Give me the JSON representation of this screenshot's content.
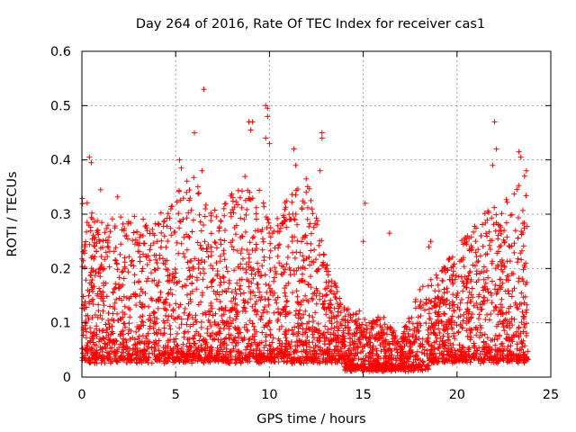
{
  "chart_data": {
    "type": "scatter",
    "title": "Day 264 of 2016, Rate Of TEC Index for receiver cas1",
    "xlabel": "GPS time / hours",
    "ylabel": "ROTI / TECUs",
    "xlim": [
      0,
      25
    ],
    "ylim": [
      0,
      0.6
    ],
    "xticks": [
      0,
      5,
      10,
      15,
      20,
      25
    ],
    "yticks": [
      0,
      0.1,
      0.2,
      0.3,
      0.4,
      0.5,
      0.6
    ],
    "xtick_labels": [
      "0",
      "5",
      "10",
      "15",
      "20",
      "25"
    ],
    "ytick_labels": [
      "0",
      "0.1",
      "0.2",
      "0.3",
      "0.4",
      "0.5",
      "0.6"
    ],
    "grid": true,
    "marker": "+",
    "series": [
      {
        "name": "ROTI",
        "color": "#ff0000",
        "outliers": [
          {
            "x": 0.4,
            "y": 0.405
          },
          {
            "x": 0.5,
            "y": 0.395
          },
          {
            "x": 1.0,
            "y": 0.345
          },
          {
            "x": 1.9,
            "y": 0.332
          },
          {
            "x": 5.2,
            "y": 0.4
          },
          {
            "x": 5.3,
            "y": 0.385
          },
          {
            "x": 6.0,
            "y": 0.45
          },
          {
            "x": 6.5,
            "y": 0.53
          },
          {
            "x": 6.4,
            "y": 0.38
          },
          {
            "x": 8.9,
            "y": 0.47
          },
          {
            "x": 9.1,
            "y": 0.47
          },
          {
            "x": 9.0,
            "y": 0.455
          },
          {
            "x": 9.8,
            "y": 0.5
          },
          {
            "x": 9.9,
            "y": 0.495
          },
          {
            "x": 9.9,
            "y": 0.48
          },
          {
            "x": 9.8,
            "y": 0.44
          },
          {
            "x": 10.0,
            "y": 0.43
          },
          {
            "x": 11.3,
            "y": 0.42
          },
          {
            "x": 11.4,
            "y": 0.39
          },
          {
            "x": 12.8,
            "y": 0.45
          },
          {
            "x": 12.8,
            "y": 0.44
          },
          {
            "x": 12.7,
            "y": 0.38
          },
          {
            "x": 15.1,
            "y": 0.32
          },
          {
            "x": 15.0,
            "y": 0.25
          },
          {
            "x": 16.4,
            "y": 0.265
          },
          {
            "x": 18.6,
            "y": 0.25
          },
          {
            "x": 18.5,
            "y": 0.24
          },
          {
            "x": 22.0,
            "y": 0.47
          },
          {
            "x": 22.1,
            "y": 0.42
          },
          {
            "x": 21.9,
            "y": 0.39
          },
          {
            "x": 23.3,
            "y": 0.415
          },
          {
            "x": 23.4,
            "y": 0.405
          },
          {
            "x": 23.7,
            "y": 0.38
          },
          {
            "x": 23.6,
            "y": 0.37
          }
        ],
        "envelope_hours": [
          0,
          1,
          2,
          3,
          4,
          5,
          6,
          7,
          8,
          9,
          10,
          11,
          12,
          13,
          14,
          15,
          16,
          17,
          18,
          19,
          20,
          21,
          22,
          23,
          23.8
        ],
        "envelope_max_roti": [
          0.34,
          0.28,
          0.3,
          0.3,
          0.29,
          0.35,
          0.37,
          0.3,
          0.34,
          0.38,
          0.3,
          0.34,
          0.37,
          0.22,
          0.13,
          0.12,
          0.12,
          0.07,
          0.17,
          0.2,
          0.23,
          0.3,
          0.32,
          0.35,
          0.36
        ]
      }
    ]
  }
}
